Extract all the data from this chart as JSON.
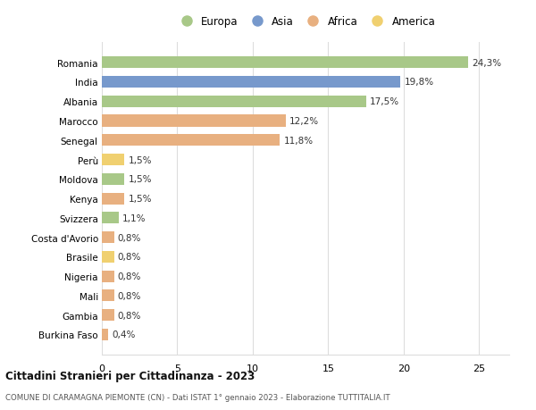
{
  "countries": [
    "Burkina Faso",
    "Gambia",
    "Mali",
    "Nigeria",
    "Brasile",
    "Costa d'Avorio",
    "Svizzera",
    "Kenya",
    "Moldova",
    "Perù",
    "Senegal",
    "Marocco",
    "Albania",
    "India",
    "Romania"
  ],
  "values": [
    0.4,
    0.8,
    0.8,
    0.8,
    0.8,
    0.8,
    1.1,
    1.5,
    1.5,
    1.5,
    11.8,
    12.2,
    17.5,
    19.8,
    24.3
  ],
  "labels": [
    "0,4%",
    "0,8%",
    "0,8%",
    "0,8%",
    "0,8%",
    "0,8%",
    "1,1%",
    "1,5%",
    "1,5%",
    "1,5%",
    "11,8%",
    "12,2%",
    "17,5%",
    "19,8%",
    "24,3%"
  ],
  "continents": [
    "Africa",
    "Africa",
    "Africa",
    "Africa",
    "America",
    "Africa",
    "Europa",
    "Africa",
    "Europa",
    "America",
    "Africa",
    "Africa",
    "Europa",
    "Asia",
    "Europa"
  ],
  "colors": {
    "Europa": "#a8c888",
    "Asia": "#7799cc",
    "Africa": "#e8b080",
    "America": "#f0d070"
  },
  "legend_order": [
    "Europa",
    "Asia",
    "Africa",
    "America"
  ],
  "title": "Cittadini Stranieri per Cittadinanza - 2023",
  "subtitle": "COMUNE DI CARAMAGNA PIEMONTE (CN) - Dati ISTAT 1° gennaio 2023 - Elaborazione TUTTITALIA.IT",
  "xlim": [
    0,
    27
  ],
  "xticks": [
    0,
    5,
    10,
    15,
    20,
    25
  ],
  "background_color": "#ffffff",
  "grid_color": "#dddddd",
  "bar_height": 0.6
}
